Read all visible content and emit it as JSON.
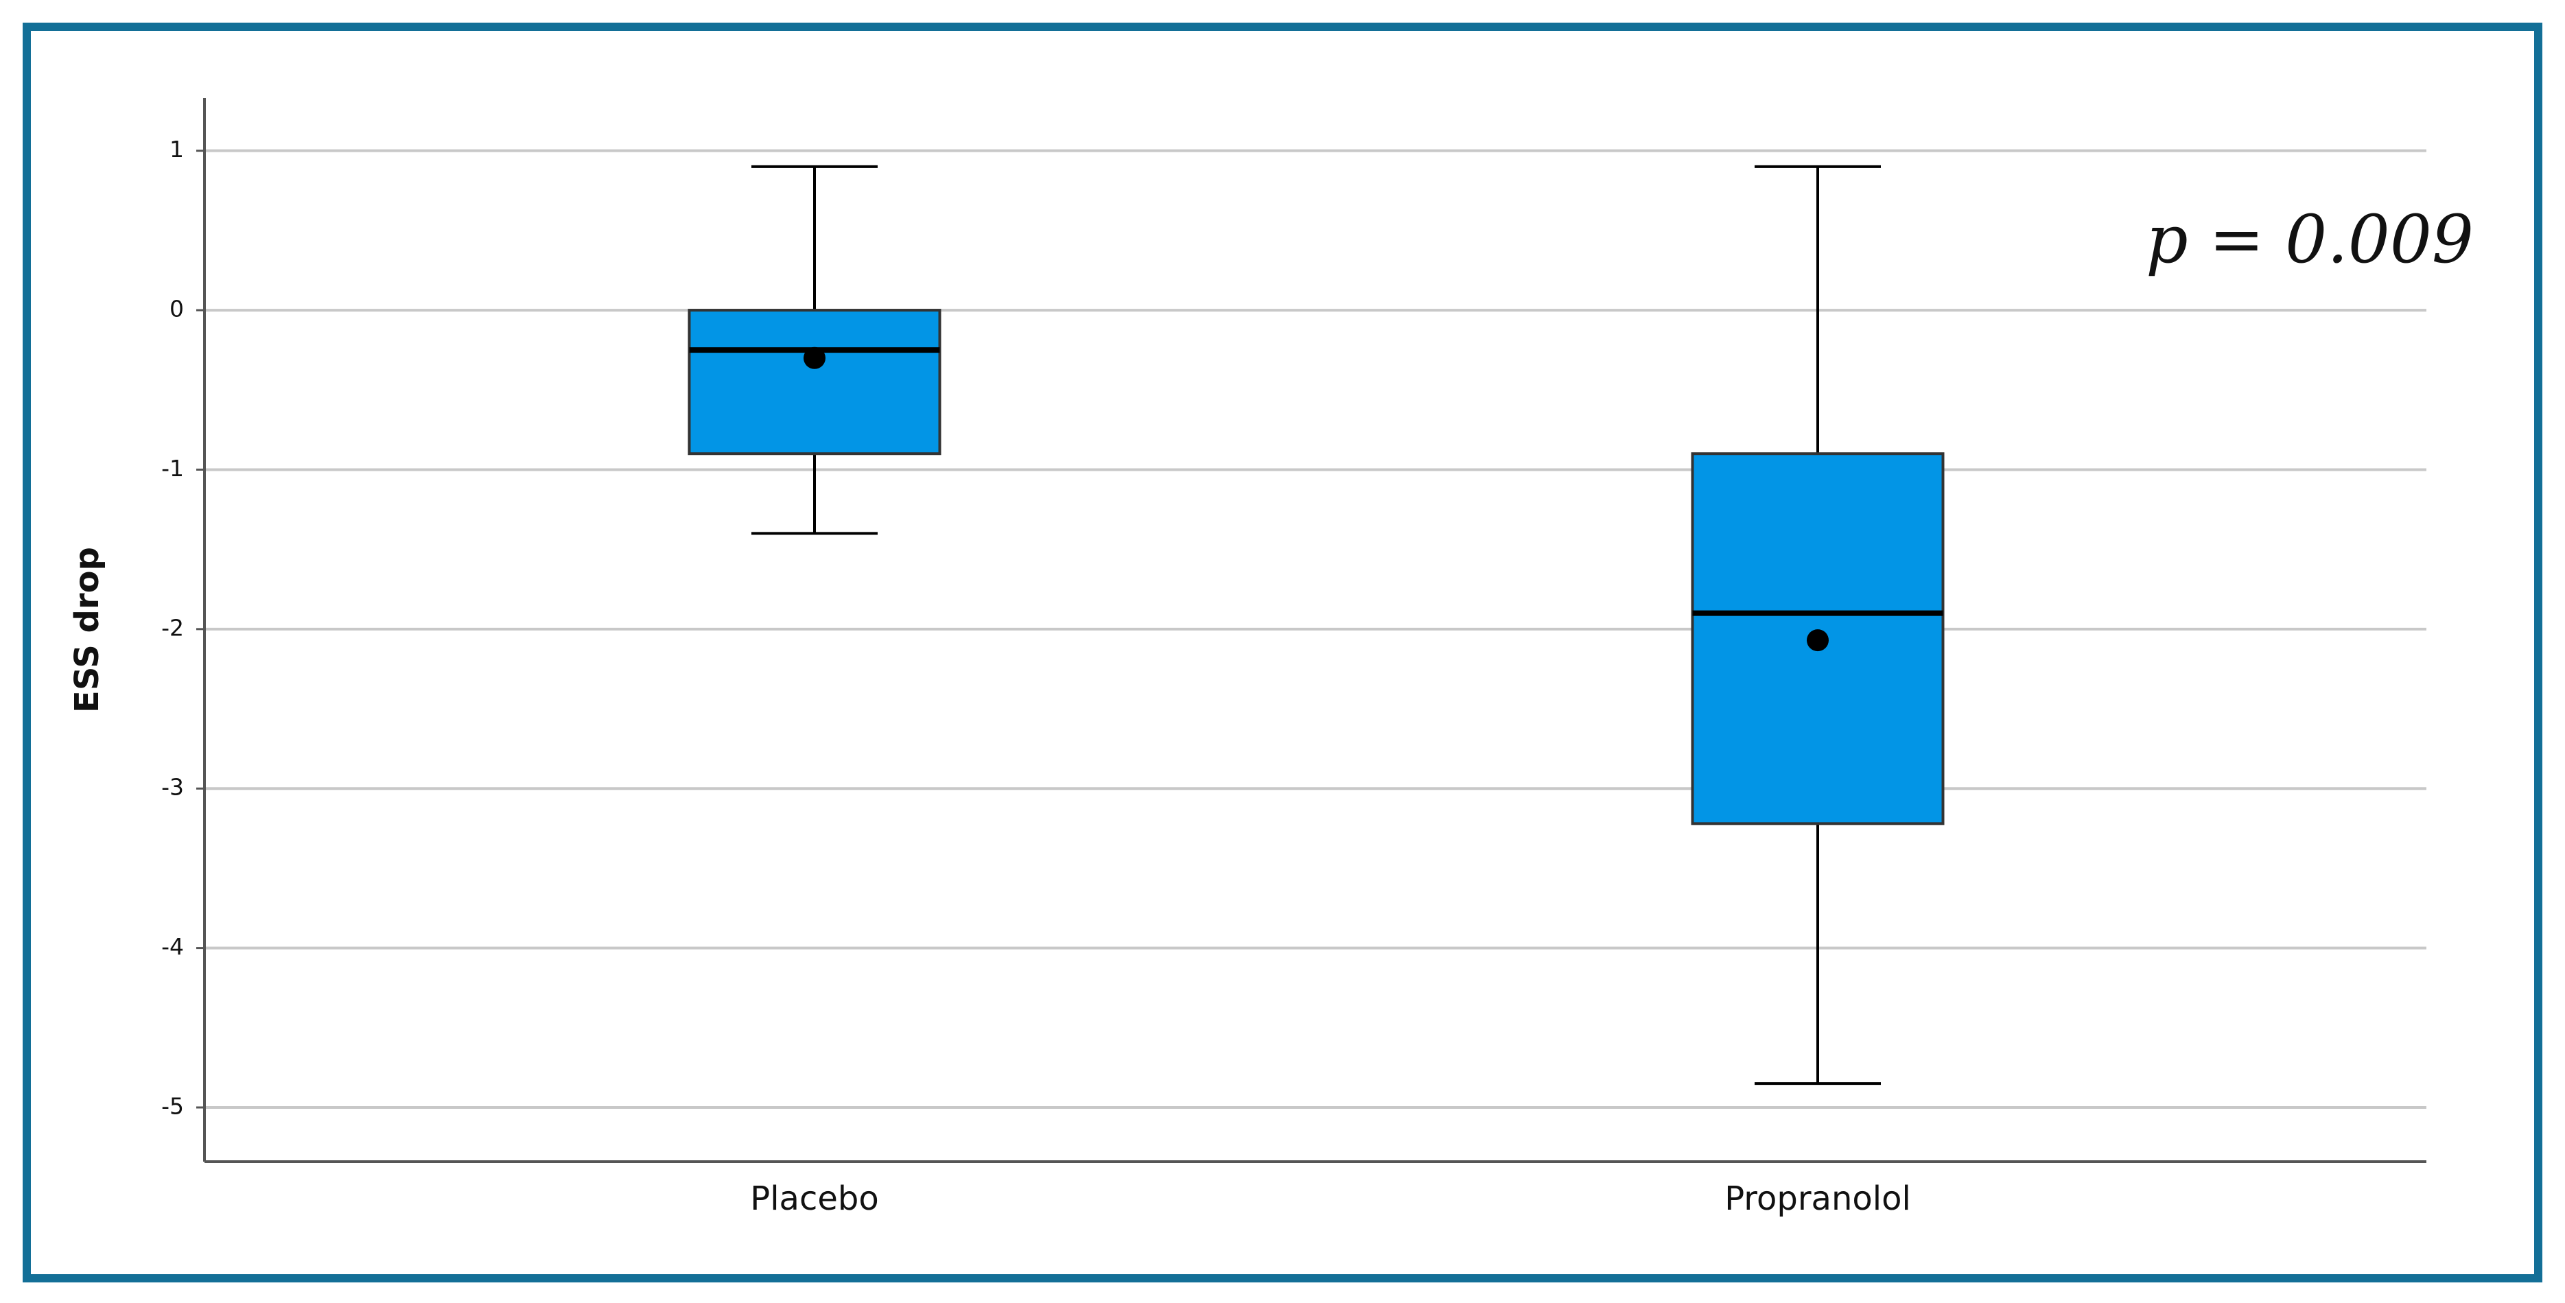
{
  "chart_data": {
    "type": "box",
    "y_label": "ESS drop",
    "annotation": "p = 0.009",
    "categories": [
      "Placebo",
      "Propranolol"
    ],
    "boxes": [
      {
        "min": -1.4,
        "q1": -0.9,
        "median": -0.25,
        "q3": 0,
        "max": 0.9,
        "mean": -0.3
      },
      {
        "min": -4.85,
        "q1": -3.22,
        "median": -1.9,
        "q3": -0.9,
        "max": 0.9,
        "mean": -2.07
      }
    ],
    "color": "#0295e6",
    "frame_color": "#136f97",
    "ylim": [
      -5.34,
      1.33
    ],
    "yticks": [
      1,
      0,
      -1,
      -2,
      -3,
      -4,
      -5
    ],
    "grid": true
  }
}
